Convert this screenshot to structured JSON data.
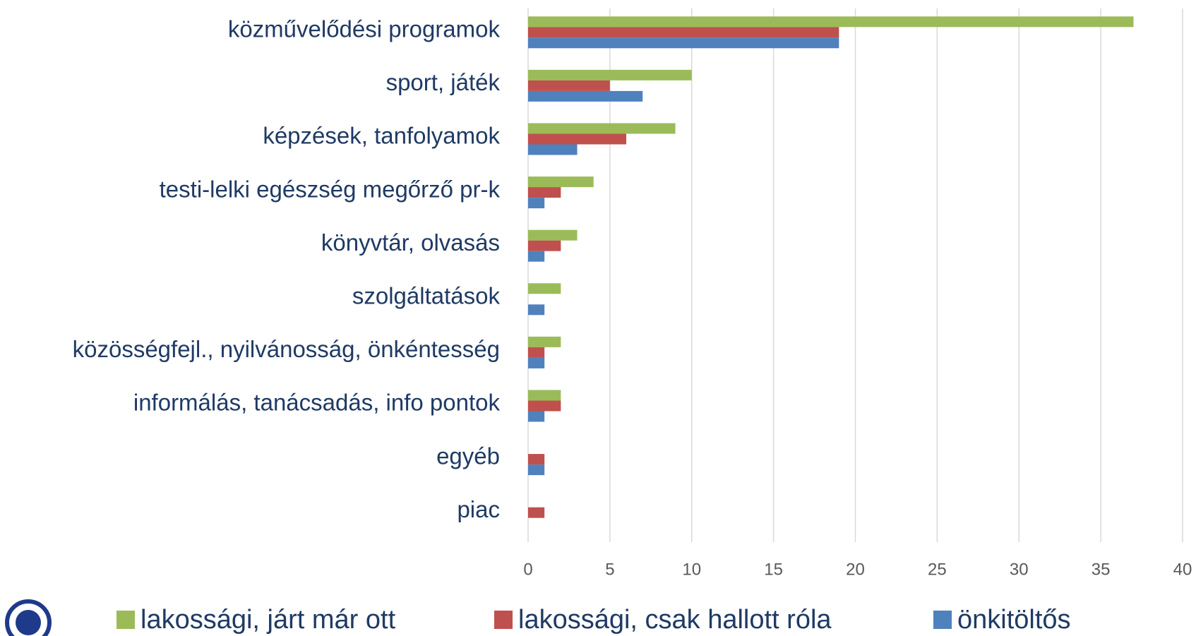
{
  "chart_data": {
    "type": "barh",
    "categories": [
      "közművelődési programok",
      "sport, játék",
      "képzések, tanfolyamok",
      "testi-lelki egészség megőrző pr-k",
      "könyvtár, olvasás",
      "szolgáltatások",
      "közösségfejl., nyilvánosság, önkéntesség",
      "informálás, tanácsadás, info pontok",
      "egyéb",
      "piac"
    ],
    "series": [
      {
        "name": "lakossági, járt már ott",
        "color": "#9bbb59",
        "values": [
          37,
          10,
          9,
          4,
          3,
          2,
          2,
          2,
          0,
          0
        ]
      },
      {
        "name": "lakossági, csak hallott róla",
        "color": "#c0504d",
        "values": [
          19,
          5,
          6,
          2,
          2,
          0,
          1,
          2,
          1,
          1
        ]
      },
      {
        "name": "önkitöltős",
        "color": "#4f81bd",
        "values": [
          19,
          7,
          3,
          1,
          1,
          1,
          1,
          1,
          1,
          0
        ]
      }
    ],
    "xlim": [
      0,
      40
    ],
    "xticks": [
      0,
      5,
      10,
      15,
      20,
      25,
      30,
      35,
      40
    ],
    "grid": true,
    "legend": "bottom"
  }
}
